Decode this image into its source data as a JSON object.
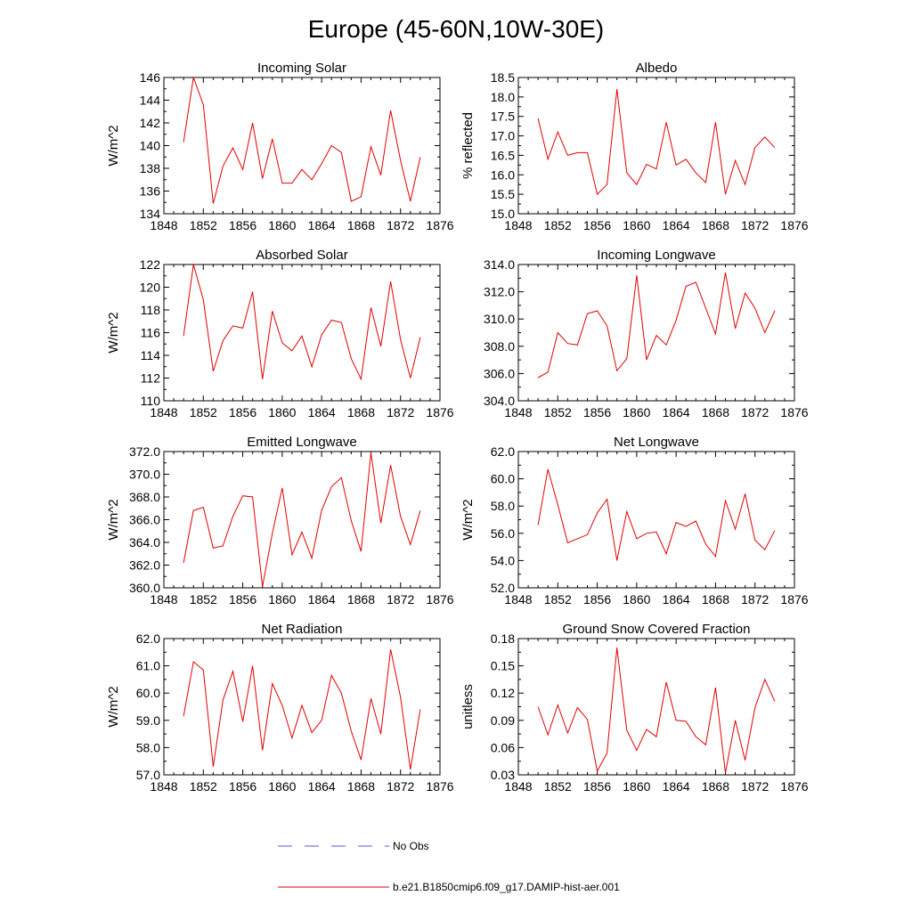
{
  "figure_title": "Europe (45-60N,10W-30E)",
  "legend": {
    "entries": [
      {
        "label": "No Obs",
        "color": "#5a5ac8",
        "style": "dashed"
      },
      {
        "label": "b.e21.B1850cmip6.f09_g17.DAMIP-hist-aer.001",
        "color": "#e00000",
        "style": "solid"
      }
    ]
  },
  "series_color": "#e00000",
  "chart_data": [
    {
      "type": "line",
      "title": "Incoming Solar",
      "ylabel": "W/m^2",
      "xlim": [
        1848,
        1876
      ],
      "ylim": [
        134,
        146
      ],
      "xticks": [
        "1848",
        "1852",
        "1856",
        "1860",
        "1864",
        "1868",
        "1872",
        "1876"
      ],
      "yticks": [
        "134",
        "136",
        "138",
        "140",
        "142",
        "144",
        "146"
      ],
      "x": [
        1850,
        1851,
        1852,
        1853,
        1854,
        1855,
        1856,
        1857,
        1858,
        1859,
        1860,
        1861,
        1862,
        1863,
        1864,
        1865,
        1866,
        1867,
        1868,
        1869,
        1870,
        1871,
        1872,
        1873,
        1874
      ],
      "series": [
        {
          "name": "b.e21.B1850cmip6.f09_g17.DAMIP-hist-aer.001",
          "values": [
            140.3,
            146.0,
            143.6,
            134.9,
            138.2,
            139.8,
            137.9,
            142.0,
            137.1,
            140.6,
            136.7,
            136.7,
            137.9,
            137.0,
            138.4,
            140.0,
            139.4,
            135.1,
            135.5,
            139.9,
            137.4,
            143.1,
            138.7,
            135.1,
            139.0
          ]
        }
      ]
    },
    {
      "type": "line",
      "title": "Albedo",
      "ylabel": "% reflected",
      "xlim": [
        1848,
        1876
      ],
      "ylim": [
        15.0,
        18.5
      ],
      "xticks": [
        "1848",
        "1852",
        "1856",
        "1860",
        "1864",
        "1868",
        "1872",
        "1876"
      ],
      "yticks": [
        "15.0",
        "15.5",
        "16.0",
        "16.5",
        "17.0",
        "17.5",
        "18.0",
        "18.5"
      ],
      "x": [
        1850,
        1851,
        1852,
        1853,
        1854,
        1855,
        1856,
        1857,
        1858,
        1859,
        1860,
        1861,
        1862,
        1863,
        1864,
        1865,
        1866,
        1867,
        1868,
        1869,
        1870,
        1871,
        1872,
        1873,
        1874
      ],
      "series": [
        {
          "name": "b.e21.B1850cmip6.f09_g17.DAMIP-hist-aer.001",
          "values": [
            17.45,
            16.4,
            17.1,
            16.5,
            16.57,
            16.57,
            15.5,
            15.75,
            18.2,
            16.05,
            15.75,
            16.27,
            16.15,
            17.35,
            16.25,
            16.4,
            16.05,
            15.8,
            17.35,
            15.5,
            16.37,
            15.75,
            16.7,
            16.97,
            16.7
          ]
        }
      ]
    },
    {
      "type": "line",
      "title": "Absorbed Solar",
      "ylabel": "W/m^2",
      "xlim": [
        1848,
        1876
      ],
      "ylim": [
        110,
        122
      ],
      "xticks": [
        "1848",
        "1852",
        "1856",
        "1860",
        "1864",
        "1868",
        "1872",
        "1876"
      ],
      "yticks": [
        "110",
        "112",
        "114",
        "116",
        "118",
        "120",
        "122"
      ],
      "x": [
        1850,
        1851,
        1852,
        1853,
        1854,
        1855,
        1856,
        1857,
        1858,
        1859,
        1860,
        1861,
        1862,
        1863,
        1864,
        1865,
        1866,
        1867,
        1868,
        1869,
        1870,
        1871,
        1872,
        1873,
        1874
      ],
      "series": [
        {
          "name": "b.e21.B1850cmip6.f09_g17.DAMIP-hist-aer.001",
          "values": [
            115.7,
            122.0,
            118.9,
            112.6,
            115.3,
            116.6,
            116.4,
            119.6,
            111.9,
            117.9,
            115.1,
            114.4,
            115.7,
            113.0,
            115.8,
            117.1,
            116.9,
            113.7,
            111.9,
            118.2,
            114.8,
            120.5,
            115.4,
            112.0,
            115.6
          ]
        }
      ]
    },
    {
      "type": "line",
      "title": "Incoming Longwave",
      "ylabel": "",
      "xlim": [
        1848,
        1876
      ],
      "ylim": [
        304.0,
        314.0
      ],
      "xticks": [
        "1848",
        "1852",
        "1856",
        "1860",
        "1864",
        "1868",
        "1872",
        "1876"
      ],
      "yticks": [
        "304.0",
        "306.0",
        "308.0",
        "310.0",
        "312.0",
        "314.0"
      ],
      "x": [
        1850,
        1851,
        1852,
        1853,
        1854,
        1855,
        1856,
        1857,
        1858,
        1859,
        1860,
        1861,
        1862,
        1863,
        1864,
        1865,
        1866,
        1867,
        1868,
        1869,
        1870,
        1871,
        1872,
        1873,
        1874
      ],
      "series": [
        {
          "name": "b.e21.B1850cmip6.f09_g17.DAMIP-hist-aer.001",
          "values": [
            305.7,
            306.1,
            309.0,
            308.2,
            308.1,
            310.4,
            310.6,
            309.5,
            306.2,
            307.1,
            313.2,
            307.0,
            308.8,
            308.1,
            309.9,
            312.4,
            312.7,
            310.8,
            308.9,
            313.4,
            309.3,
            311.9,
            310.8,
            309.0,
            310.6
          ]
        }
      ]
    },
    {
      "type": "line",
      "title": "Emitted Longwave",
      "ylabel": "W/m^2",
      "xlim": [
        1848,
        1876
      ],
      "ylim": [
        360.0,
        372.0
      ],
      "xticks": [
        "1848",
        "1852",
        "1856",
        "1860",
        "1864",
        "1868",
        "1872",
        "1876"
      ],
      "yticks": [
        "360.0",
        "362.0",
        "364.0",
        "366.0",
        "368.0",
        "370.0",
        "372.0"
      ],
      "x": [
        1850,
        1851,
        1852,
        1853,
        1854,
        1855,
        1856,
        1857,
        1858,
        1859,
        1860,
        1861,
        1862,
        1863,
        1864,
        1865,
        1866,
        1867,
        1868,
        1869,
        1870,
        1871,
        1872,
        1873,
        1874
      ],
      "series": [
        {
          "name": "b.e21.B1850cmip6.f09_g17.DAMIP-hist-aer.001",
          "values": [
            362.2,
            366.8,
            367.1,
            363.5,
            363.7,
            366.3,
            368.1,
            368.0,
            360.1,
            364.8,
            368.8,
            362.9,
            364.9,
            362.6,
            366.8,
            368.9,
            369.7,
            365.9,
            363.2,
            371.9,
            365.7,
            370.8,
            366.3,
            363.8,
            366.8
          ]
        }
      ]
    },
    {
      "type": "line",
      "title": "Net Longwave",
      "ylabel": "W/m^2",
      "xlim": [
        1848,
        1876
      ],
      "ylim": [
        52.0,
        62.0
      ],
      "xticks": [
        "1848",
        "1852",
        "1856",
        "1860",
        "1864",
        "1868",
        "1872",
        "1876"
      ],
      "yticks": [
        "52.0",
        "54.0",
        "56.0",
        "58.0",
        "60.0",
        "62.0"
      ],
      "x": [
        1850,
        1851,
        1852,
        1853,
        1854,
        1855,
        1856,
        1857,
        1858,
        1859,
        1860,
        1861,
        1862,
        1863,
        1864,
        1865,
        1866,
        1867,
        1868,
        1869,
        1870,
        1871,
        1872,
        1873,
        1874
      ],
      "series": [
        {
          "name": "b.e21.B1850cmip6.f09_g17.DAMIP-hist-aer.001",
          "values": [
            56.6,
            60.7,
            58.1,
            55.3,
            55.6,
            55.9,
            57.5,
            58.5,
            54.0,
            57.6,
            55.6,
            56.0,
            56.1,
            54.5,
            56.8,
            56.5,
            56.9,
            55.2,
            54.3,
            58.4,
            56.3,
            58.9,
            55.5,
            54.8,
            56.2
          ]
        }
      ]
    },
    {
      "type": "line",
      "title": "Net Radiation",
      "ylabel": "W/m^2",
      "xlim": [
        1848,
        1876
      ],
      "ylim": [
        57.0,
        62.0
      ],
      "xticks": [
        "1848",
        "1852",
        "1856",
        "1860",
        "1864",
        "1868",
        "1872",
        "1876"
      ],
      "yticks": [
        "57.0",
        "58.0",
        "59.0",
        "60.0",
        "61.0",
        "62.0"
      ],
      "x": [
        1850,
        1851,
        1852,
        1853,
        1854,
        1855,
        1856,
        1857,
        1858,
        1859,
        1860,
        1861,
        1862,
        1863,
        1864,
        1865,
        1866,
        1867,
        1868,
        1869,
        1870,
        1871,
        1872,
        1873,
        1874
      ],
      "series": [
        {
          "name": "b.e21.B1850cmip6.f09_g17.DAMIP-hist-aer.001",
          "values": [
            59.15,
            61.15,
            60.85,
            57.3,
            59.75,
            60.8,
            58.95,
            61.0,
            57.9,
            60.35,
            59.55,
            58.35,
            59.55,
            58.55,
            59.0,
            60.65,
            60.0,
            58.6,
            57.55,
            59.8,
            58.5,
            61.6,
            59.85,
            57.2,
            59.4
          ]
        }
      ]
    },
    {
      "type": "line",
      "title": "Ground Snow Covered Fraction",
      "ylabel": "unitless",
      "xlim": [
        1848,
        1876
      ],
      "ylim": [
        0.03,
        0.18
      ],
      "xticks": [
        "1848",
        "1852",
        "1856",
        "1860",
        "1864",
        "1868",
        "1872",
        "1876"
      ],
      "yticks": [
        "0.03",
        "0.06",
        "0.09",
        "0.12",
        "0.15",
        "0.18"
      ],
      "x": [
        1850,
        1851,
        1852,
        1853,
        1854,
        1855,
        1856,
        1857,
        1858,
        1859,
        1860,
        1861,
        1862,
        1863,
        1864,
        1865,
        1866,
        1867,
        1868,
        1869,
        1870,
        1871,
        1872,
        1873,
        1874
      ],
      "series": [
        {
          "name": "b.e21.B1850cmip6.f09_g17.DAMIP-hist-aer.001",
          "values": [
            0.105,
            0.074,
            0.107,
            0.076,
            0.104,
            0.091,
            0.034,
            0.054,
            0.17,
            0.079,
            0.057,
            0.08,
            0.072,
            0.132,
            0.09,
            0.089,
            0.072,
            0.063,
            0.126,
            0.032,
            0.09,
            0.046,
            0.104,
            0.135,
            0.111
          ]
        }
      ]
    }
  ]
}
